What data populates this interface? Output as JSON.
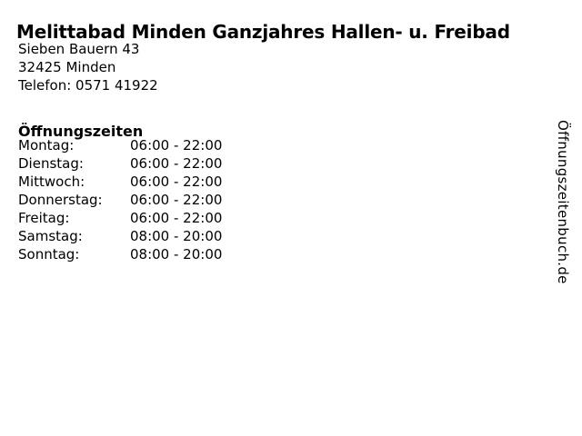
{
  "page": {
    "title": "Melittabad Minden Ganzjahres Hallen- u. Freibad",
    "address": {
      "street": "Sieben Bauern 43",
      "city": "32425 Minden",
      "phone": "Telefon: 0571 41922"
    },
    "hours": {
      "heading": "Öffnungszeiten",
      "rows": [
        {
          "day": "Montag:",
          "time": "06:00 - 22:00"
        },
        {
          "day": "Dienstag:",
          "time": "06:00 - 22:00"
        },
        {
          "day": "Mittwoch:",
          "time": "06:00 - 22:00"
        },
        {
          "day": "Donnerstag:",
          "time": "06:00 - 22:00"
        },
        {
          "day": "Freitag:",
          "time": "06:00 - 22:00"
        },
        {
          "day": "Samstag:",
          "time": "08:00 - 20:00"
        },
        {
          "day": "Sonntag:",
          "time": "08:00 - 20:00"
        }
      ]
    },
    "watermark": "Öffnungszeitenbuch.de",
    "colors": {
      "text": "#000000",
      "background": "#ffffff"
    }
  }
}
